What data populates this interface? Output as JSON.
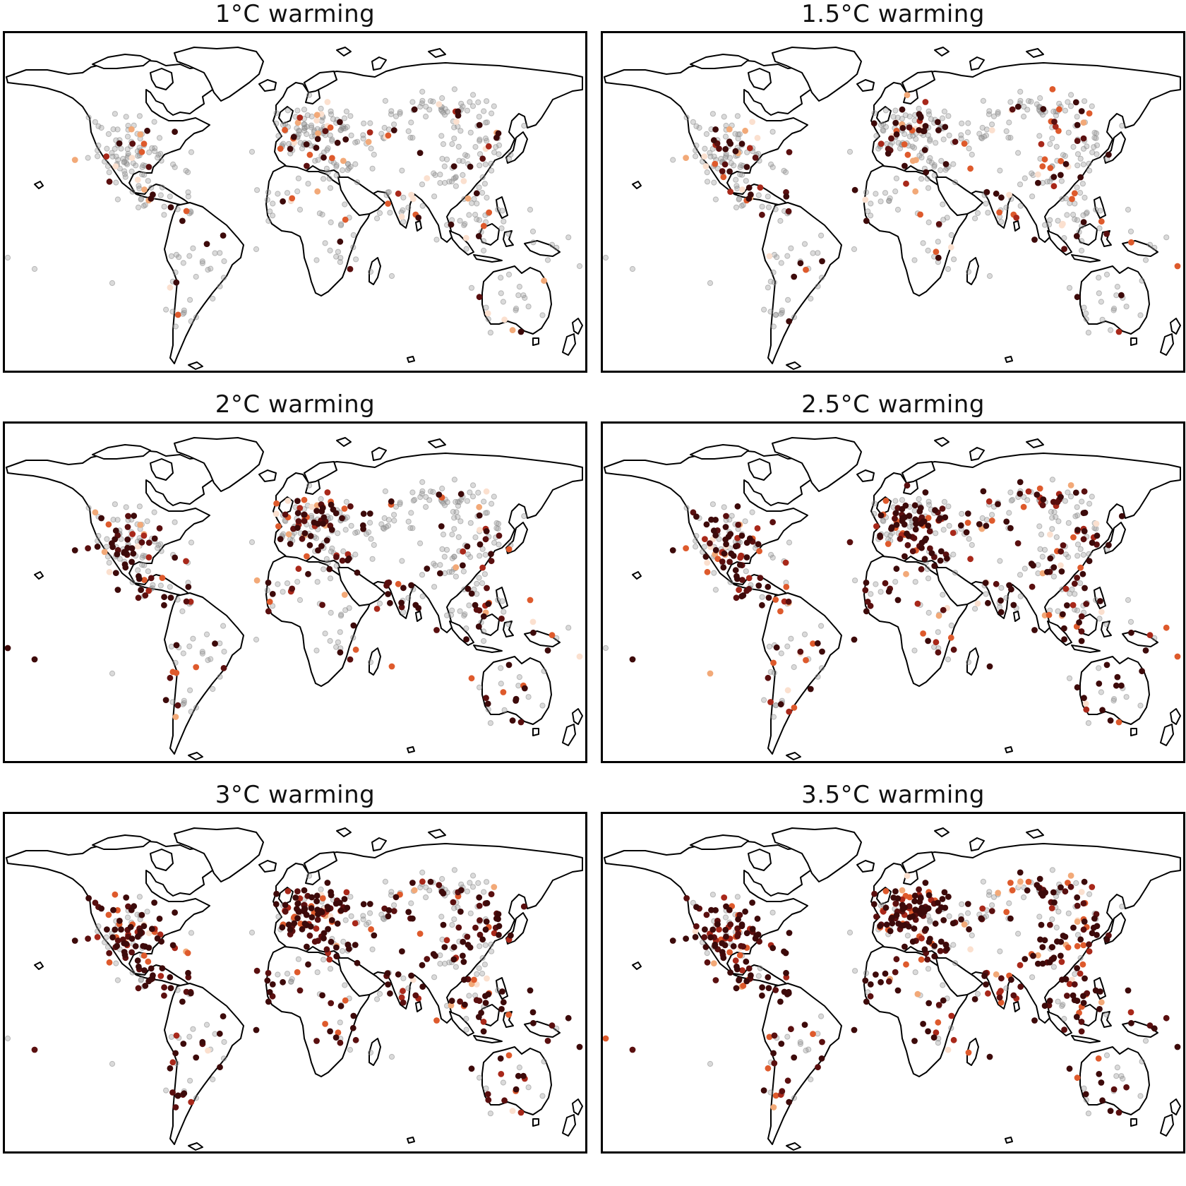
{
  "figure": {
    "panels": [
      {
        "title": "1°C warming",
        "dark_share": 0.08,
        "bright_share": 0.07,
        "seed": 11
      },
      {
        "title": "1.5°C warming",
        "dark_share": 0.17,
        "bright_share": 0.07,
        "seed": 23
      },
      {
        "title": "2°C warming",
        "dark_share": 0.34,
        "bright_share": 0.05,
        "seed": 37
      },
      {
        "title": "2.5°C warming",
        "dark_share": 0.46,
        "bright_share": 0.06,
        "seed": 41
      },
      {
        "title": "3°C warming",
        "dark_share": 0.58,
        "bright_share": 0.05,
        "seed": 53
      },
      {
        "title": "3.5°C warming",
        "dark_share": 0.66,
        "bright_share": 0.05,
        "seed": 67
      }
    ],
    "colors": {
      "station_unchanged": "#8c8c8c",
      "severity_scale": [
        "#fbe0cf",
        "#f2a978",
        "#de5a2c",
        "#a8281a",
        "#5a0f0f",
        "#3d0a0a"
      ],
      "coastline": "#000000",
      "frame": "#000000"
    }
  }
}
